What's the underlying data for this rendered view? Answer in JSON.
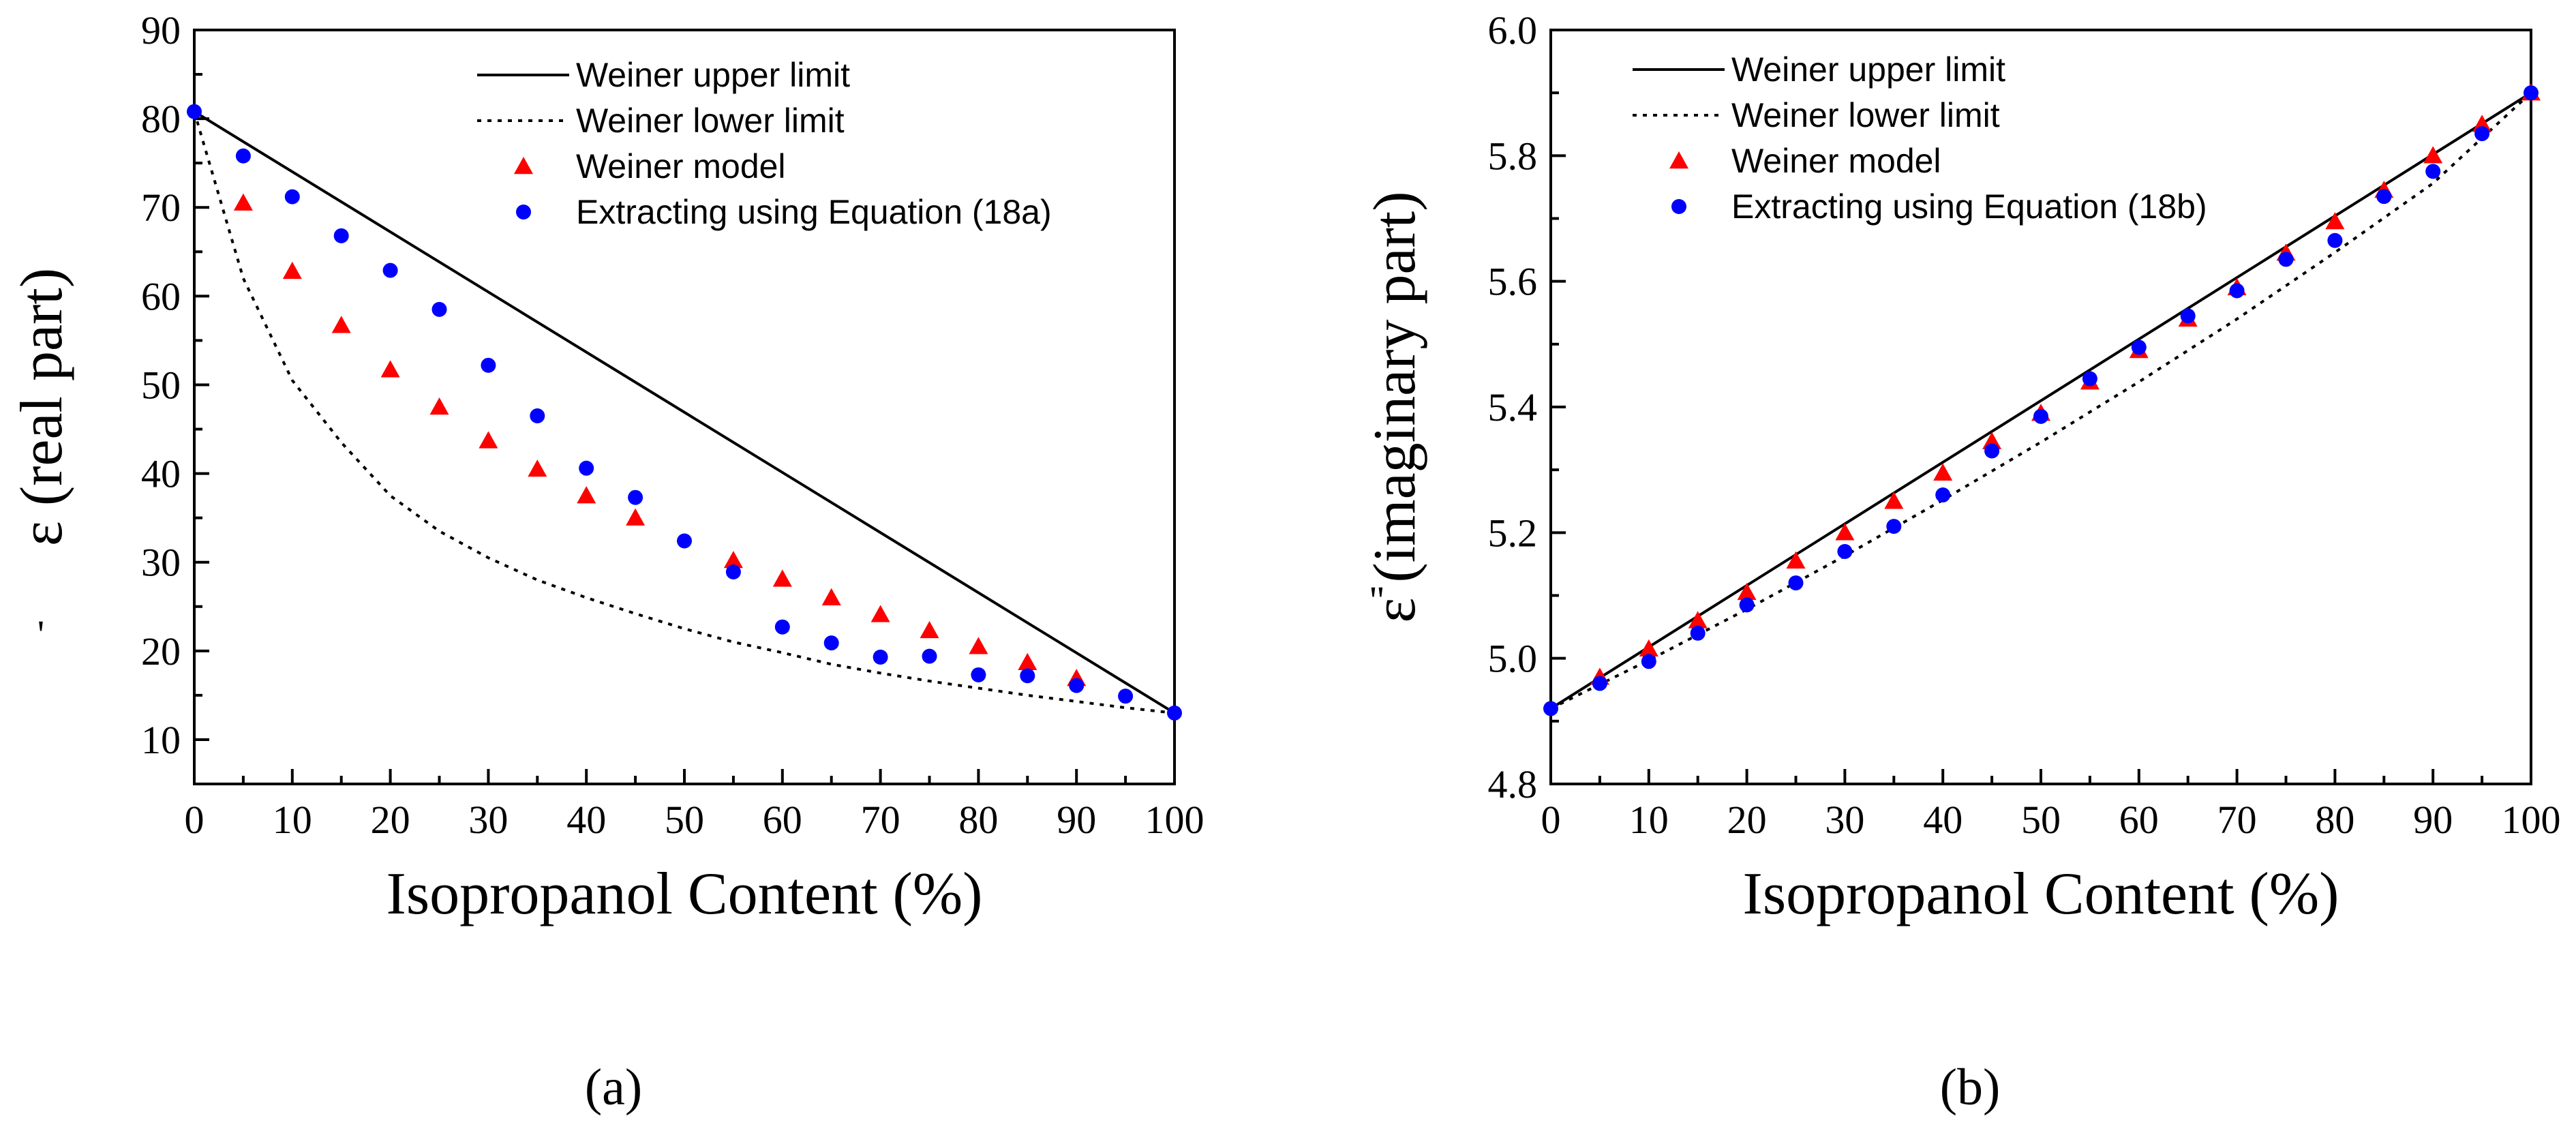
{
  "chart_data": [
    {
      "type": "scatter",
      "panel_label": "(a)",
      "xlabel": "Isopropanol Content (%)",
      "ylabel_symbol": "ε",
      "ylabel_prime": "'",
      "ylabel_text": "(real part)",
      "xlim": [
        0,
        100
      ],
      "ylim": [
        5,
        90
      ],
      "xticks": [
        0,
        10,
        20,
        30,
        40,
        50,
        60,
        70,
        80,
        90,
        100
      ],
      "yticks": [
        10,
        20,
        30,
        40,
        50,
        60,
        70,
        80,
        90
      ],
      "legend_position": "top-center",
      "series": [
        {
          "name": "Weiner upper limit",
          "kind": "line-solid",
          "color": "#000000",
          "x": [
            0,
            100
          ],
          "y": [
            80.8,
            13.0
          ]
        },
        {
          "name": "Weiner lower limit",
          "kind": "line-dotted",
          "color": "#000000",
          "x": [
            0,
            5,
            10,
            15,
            20,
            25,
            30,
            35,
            40,
            45,
            50,
            55,
            60,
            65,
            70,
            75,
            80,
            85,
            90,
            95,
            100
          ],
          "y": [
            80.8,
            62.0,
            50.5,
            43.5,
            37.5,
            33.5,
            30.5,
            28.0,
            26.0,
            24.2,
            22.5,
            21.0,
            19.8,
            18.5,
            17.5,
            16.6,
            15.8,
            15.0,
            14.3,
            13.6,
            13.0
          ]
        },
        {
          "name": "Weiner model",
          "kind": "marker-triangle",
          "color": "#ff0000",
          "x": [
            5,
            10,
            15,
            20,
            25,
            30,
            35,
            40,
            45,
            55,
            60,
            65,
            70,
            75,
            80,
            85,
            90
          ],
          "y": [
            70.5,
            62.8,
            56.7,
            51.7,
            47.5,
            43.7,
            40.5,
            37.5,
            35.0,
            30.2,
            28.1,
            26.0,
            24.1,
            22.3,
            20.5,
            18.7,
            16.9
          ]
        },
        {
          "name": "Extracting using Equation (18a)",
          "kind": "marker-circle",
          "color": "#0000ff",
          "x": [
            0,
            5,
            10,
            15,
            20,
            25,
            30,
            35,
            40,
            45,
            50,
            55,
            60,
            65,
            70,
            75,
            80,
            85,
            90,
            95,
            100
          ],
          "y": [
            80.8,
            75.8,
            71.2,
            66.8,
            62.9,
            58.5,
            52.2,
            46.5,
            40.6,
            37.3,
            32.4,
            28.9,
            22.7,
            20.9,
            19.3,
            19.4,
            17.3,
            17.2,
            16.1,
            14.9,
            13.0
          ]
        }
      ]
    },
    {
      "type": "scatter",
      "panel_label": "(b)",
      "xlabel": "Isopropanol Content (%)",
      "ylabel_symbol": "ε",
      "ylabel_prime": "\"",
      "ylabel_text": "(imaginary part)",
      "xlim": [
        0,
        100
      ],
      "ylim": [
        4.8,
        6.0
      ],
      "xticks": [
        0,
        10,
        20,
        30,
        40,
        50,
        60,
        70,
        80,
        90,
        100
      ],
      "yticks": [
        "4.8",
        "5.0",
        "5.2",
        "5.4",
        "5.6",
        "5.8",
        "6.0"
      ],
      "legend_position": "top-center",
      "series": [
        {
          "name": "Weiner upper limit",
          "kind": "line-solid",
          "color": "#000000",
          "x": [
            0,
            100
          ],
          "y": [
            4.92,
            5.9
          ]
        },
        {
          "name": "Weiner lower limit",
          "kind": "line-dotted",
          "color": "#000000",
          "x": [
            0,
            10,
            20,
            30,
            40,
            50,
            60,
            70,
            80,
            90,
            100
          ],
          "y": [
            4.92,
            4.997,
            5.078,
            5.163,
            5.252,
            5.344,
            5.44,
            5.54,
            5.646,
            5.756,
            5.9
          ]
        },
        {
          "name": "Weiner model",
          "kind": "marker-triangle",
          "color": "#ff0000",
          "x": [
            5,
            10,
            15,
            20,
            25,
            30,
            35,
            40,
            45,
            50,
            55,
            60,
            65,
            70,
            75,
            80,
            85,
            90,
            95,
            100
          ],
          "y": [
            4.97,
            5.015,
            5.06,
            5.105,
            5.155,
            5.2,
            5.25,
            5.295,
            5.345,
            5.39,
            5.44,
            5.49,
            5.54,
            5.59,
            5.645,
            5.695,
            5.745,
            5.8,
            5.85,
            5.9
          ]
        },
        {
          "name": "Extracting using Equation (18b)",
          "kind": "marker-circle",
          "color": "#0000ff",
          "x": [
            0,
            5,
            10,
            15,
            20,
            25,
            30,
            35,
            40,
            45,
            50,
            55,
            60,
            65,
            70,
            75,
            80,
            85,
            90,
            95,
            100
          ],
          "y": [
            4.92,
            4.96,
            4.995,
            5.04,
            5.085,
            5.12,
            5.17,
            5.21,
            5.26,
            5.33,
            5.385,
            5.445,
            5.495,
            5.545,
            5.585,
            5.635,
            5.665,
            5.735,
            5.775,
            5.835,
            5.9
          ]
        }
      ]
    }
  ]
}
